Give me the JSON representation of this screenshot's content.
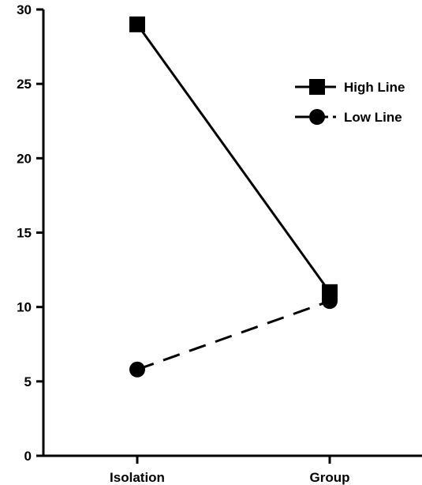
{
  "chart_data": {
    "type": "line",
    "title": "",
    "xlabel": "",
    "ylabel": "",
    "categories": [
      "Isolation",
      "Group"
    ],
    "ylim": [
      0,
      30
    ],
    "yticks": [
      "0",
      "5",
      "10",
      "15",
      "20",
      "25",
      "30"
    ],
    "grid": false,
    "legend_position": "top-right",
    "series": [
      {
        "name": "High Line",
        "values": [
          29,
          11
        ],
        "marker": "square",
        "line_style": "solid",
        "color": "#000000"
      },
      {
        "name": "Low Line",
        "values": [
          5.8,
          10.4
        ],
        "marker": "circle",
        "line_style": "dashed",
        "color": "#000000"
      }
    ]
  }
}
